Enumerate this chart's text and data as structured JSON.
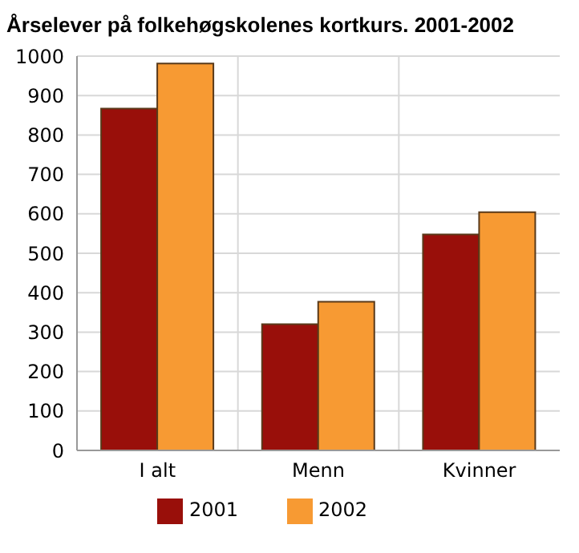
{
  "chart_data": {
    "type": "bar",
    "title": "Årselever på folkehøgskolenes kortkurs. 2001-2002",
    "categories": [
      "I alt",
      "Menn",
      "Kvinner"
    ],
    "series": [
      {
        "name": "2001",
        "color": "#990f0a",
        "values": [
          867,
          320,
          548
        ]
      },
      {
        "name": "2002",
        "color": "#f79a33",
        "values": [
          981,
          377,
          604
        ]
      }
    ],
    "ylim": [
      0,
      1000
    ],
    "yticks": [
      0,
      100,
      200,
      300,
      400,
      500,
      600,
      700,
      800,
      900,
      1000
    ],
    "grid": true,
    "legend": "bottom"
  }
}
